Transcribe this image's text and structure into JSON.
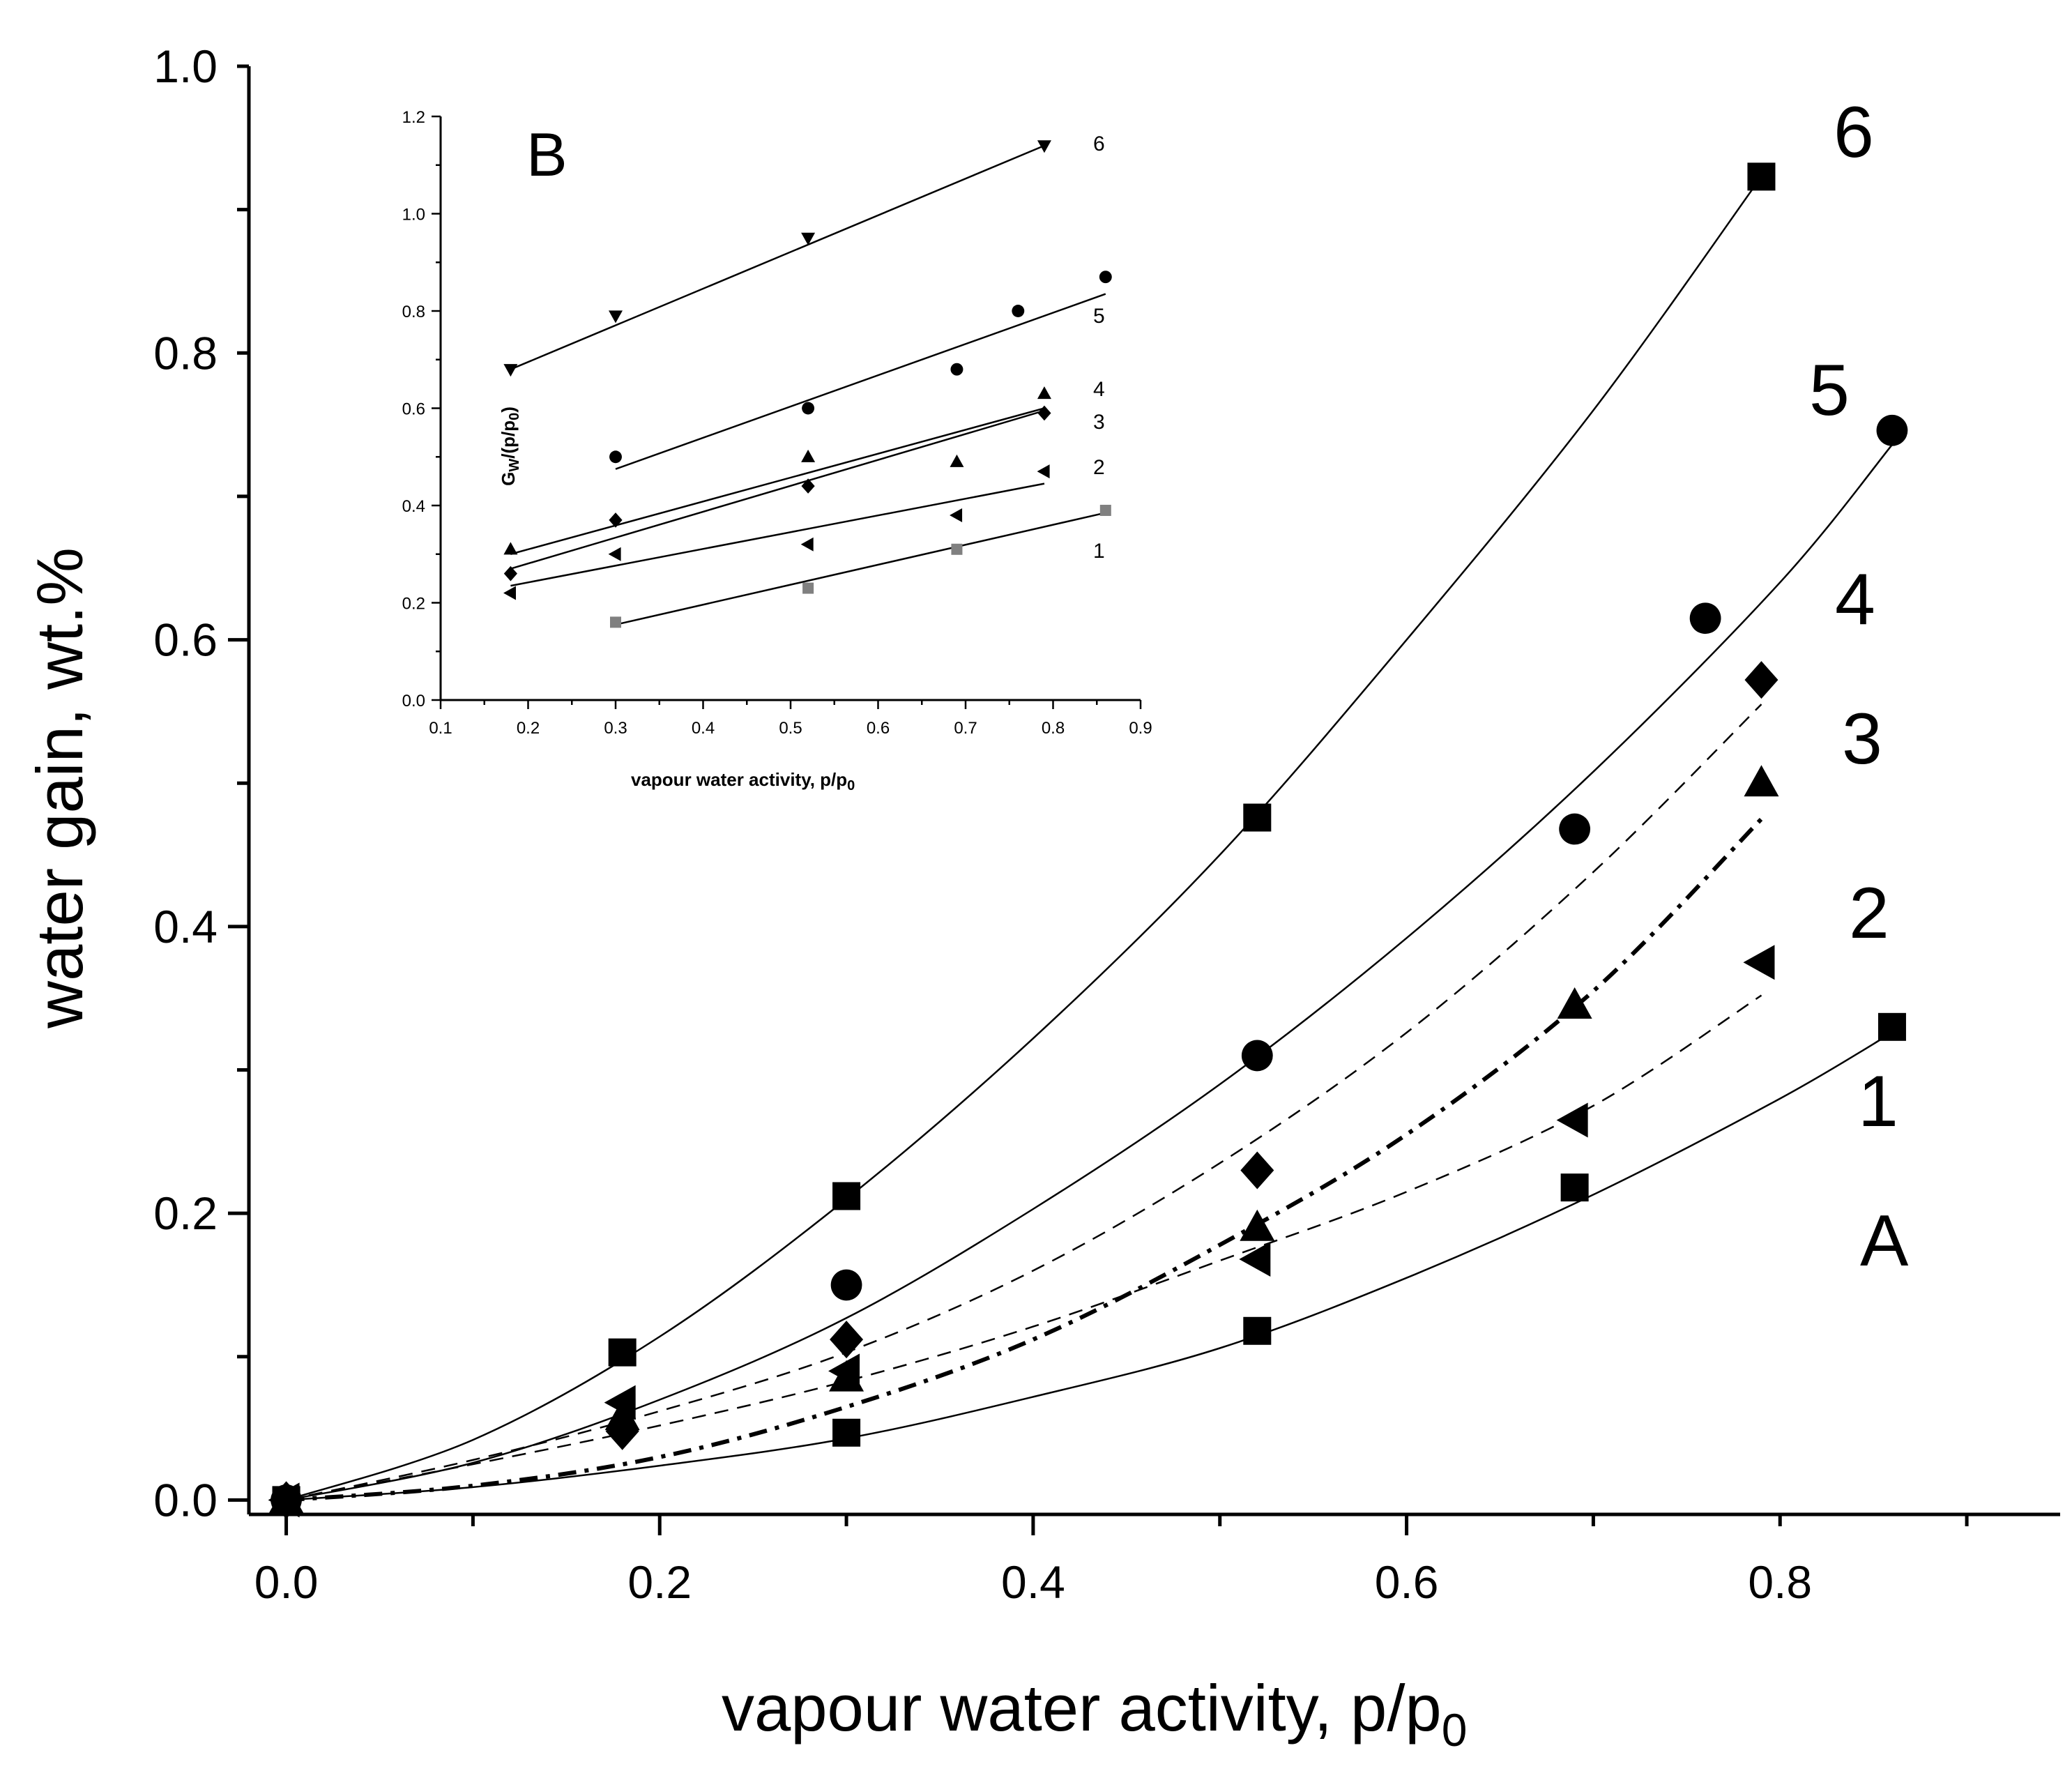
{
  "chart_data": [
    {
      "id": "A",
      "type": "scatter",
      "panel_label": "A",
      "xlabel": "vapour water activity, p/p",
      "xlabel_sub": "0",
      "ylabel": "water gain, wt.%",
      "xlim": [
        -0.02,
        0.95
      ],
      "ylim": [
        -0.01,
        1.0
      ],
      "xticks": [
        0.0,
        0.2,
        0.4,
        0.6,
        0.8
      ],
      "xtick_labels": [
        "0.0",
        "0.2",
        "0.4",
        "0.6",
        "0.8"
      ],
      "yticks": [
        0.0,
        0.2,
        0.4,
        0.6,
        0.8,
        1.0
      ],
      "ytick_labels": [
        "0.0",
        "0.2",
        "0.4",
        "0.6",
        "0.8",
        "1.0"
      ],
      "series": [
        {
          "name": "1",
          "marker": "square",
          "line": "solid",
          "x": [
            0.0,
            0.3,
            0.52,
            0.69,
            0.86
          ],
          "y": [
            0.0,
            0.047,
            0.118,
            0.218,
            0.33
          ],
          "fit_x": [
            0.0,
            0.1,
            0.2,
            0.3,
            0.4,
            0.5,
            0.6,
            0.7,
            0.8,
            0.86
          ],
          "fit_y": [
            0.0,
            0.009,
            0.024,
            0.043,
            0.072,
            0.106,
            0.155,
            0.213,
            0.28,
            0.326
          ]
        },
        {
          "name": "2",
          "marker": "triangle-left",
          "line": "dashed",
          "x": [
            0.0,
            0.18,
            0.3,
            0.52,
            0.69,
            0.79
          ],
          "y": [
            0.0,
            0.068,
            0.09,
            0.168,
            0.265,
            0.375
          ],
          "fit_x": [
            0.0,
            0.1,
            0.2,
            0.3,
            0.4,
            0.5,
            0.6,
            0.7,
            0.79
          ],
          "fit_y": [
            0.0,
            0.025,
            0.052,
            0.083,
            0.121,
            0.167,
            0.215,
            0.275,
            0.352
          ]
        },
        {
          "name": "3",
          "marker": "triangle-up",
          "line": "dash-dot",
          "x": [
            0.0,
            0.18,
            0.3,
            0.52,
            0.69,
            0.79
          ],
          "y": [
            0.0,
            0.058,
            0.085,
            0.19,
            0.345,
            0.5
          ],
          "fit_x": [
            0.0,
            0.1,
            0.2,
            0.3,
            0.4,
            0.5,
            0.6,
            0.7,
            0.79
          ],
          "fit_y": [
            0.0,
            0.01,
            0.03,
            0.065,
            0.112,
            0.178,
            0.255,
            0.355,
            0.475
          ]
        },
        {
          "name": "4",
          "marker": "diamond",
          "line": "dashed",
          "x": [
            0.0,
            0.18,
            0.3,
            0.52,
            0.79
          ],
          "y": [
            0.0,
            0.048,
            0.112,
            0.23,
            0.572
          ],
          "fit_x": [
            0.0,
            0.1,
            0.2,
            0.3,
            0.4,
            0.5,
            0.6,
            0.7,
            0.79
          ],
          "fit_y": [
            0.0,
            0.028,
            0.062,
            0.103,
            0.16,
            0.235,
            0.326,
            0.438,
            0.555
          ]
        },
        {
          "name": "5",
          "marker": "circle",
          "line": "solid",
          "x": [
            0.0,
            0.3,
            0.52,
            0.69,
            0.76,
            0.86
          ],
          "y": [
            0.0,
            0.15,
            0.31,
            0.468,
            0.615,
            0.746
          ],
          "fit_x": [
            0.0,
            0.1,
            0.2,
            0.3,
            0.4,
            0.5,
            0.6,
            0.7,
            0.8,
            0.86
          ],
          "fit_y": [
            0.0,
            0.026,
            0.07,
            0.127,
            0.203,
            0.29,
            0.392,
            0.508,
            0.64,
            0.736
          ]
        },
        {
          "name": "6",
          "marker": "square",
          "line": "solid",
          "x": [
            0.0,
            0.18,
            0.3,
            0.52,
            0.79
          ],
          "y": [
            0.0,
            0.103,
            0.212,
            0.476,
            0.923
          ],
          "fit_x": [
            0.0,
            0.1,
            0.2,
            0.3,
            0.4,
            0.5,
            0.6,
            0.7,
            0.79
          ],
          "fit_y": [
            0.0,
            0.042,
            0.114,
            0.21,
            0.322,
            0.45,
            0.6,
            0.76,
            0.923
          ]
        }
      ]
    },
    {
      "id": "B",
      "type": "scatter",
      "panel_label": "B",
      "xlabel": "vapour water activity, p/p",
      "xlabel_sub": "0",
      "ylabel_main": "G",
      "ylabel_sub": "W",
      "ylabel_rest": "/(p/p",
      "ylabel_sub2": "0",
      "ylabel_end": ")",
      "xlim": [
        0.1,
        0.9
      ],
      "ylim": [
        0.0,
        1.2
      ],
      "xticks": [
        0.1,
        0.2,
        0.3,
        0.4,
        0.5,
        0.6,
        0.7,
        0.8,
        0.9
      ],
      "xtick_labels": [
        "0.1",
        "0.2",
        "0.3",
        "0.4",
        "0.5",
        "0.6",
        "0.7",
        "0.8",
        "0.9"
      ],
      "yticks": [
        0.0,
        0.2,
        0.4,
        0.6,
        0.8,
        1.0,
        1.2
      ],
      "ytick_labels": [
        "0.0",
        "0.2",
        "0.4",
        "0.6",
        "0.8",
        "1.0",
        "1.2"
      ],
      "series": [
        {
          "name": "1",
          "marker": "square",
          "color": "#808080",
          "x": [
            0.3,
            0.52,
            0.69,
            0.86
          ],
          "y": [
            0.16,
            0.23,
            0.31,
            0.39
          ],
          "fit_x": [
            0.3,
            0.86
          ],
          "fit_y": [
            0.155,
            0.385
          ]
        },
        {
          "name": "2",
          "marker": "triangle-left",
          "x": [
            0.18,
            0.3,
            0.52,
            0.69,
            0.79
          ],
          "y": [
            0.22,
            0.3,
            0.32,
            0.38,
            0.47
          ],
          "fit_x": [
            0.18,
            0.79
          ],
          "fit_y": [
            0.235,
            0.445
          ]
        },
        {
          "name": "3",
          "marker": "diamond",
          "x": [
            0.18,
            0.3,
            0.52,
            0.79
          ],
          "y": [
            0.26,
            0.37,
            0.44,
            0.59
          ],
          "fit_x": [
            0.18,
            0.79
          ],
          "fit_y": [
            0.27,
            0.595
          ]
        },
        {
          "name": "4",
          "marker": "triangle-up",
          "x": [
            0.18,
            0.52,
            0.69,
            0.79
          ],
          "y": [
            0.31,
            0.5,
            0.49,
            0.63
          ],
          "fit_x": [
            0.18,
            0.79
          ],
          "fit_y": [
            0.3,
            0.6
          ]
        },
        {
          "name": "5",
          "marker": "circle",
          "x": [
            0.3,
            0.52,
            0.69,
            0.76,
            0.86
          ],
          "y": [
            0.5,
            0.6,
            0.68,
            0.8,
            0.87
          ],
          "fit_x": [
            0.3,
            0.86
          ],
          "fit_y": [
            0.475,
            0.835
          ]
        },
        {
          "name": "6",
          "marker": "triangle-down",
          "x": [
            0.18,
            0.3,
            0.52,
            0.79
          ],
          "y": [
            0.68,
            0.79,
            0.95,
            1.14
          ],
          "fit_x": [
            0.18,
            0.79
          ],
          "fit_y": [
            0.68,
            1.14
          ]
        }
      ]
    }
  ]
}
